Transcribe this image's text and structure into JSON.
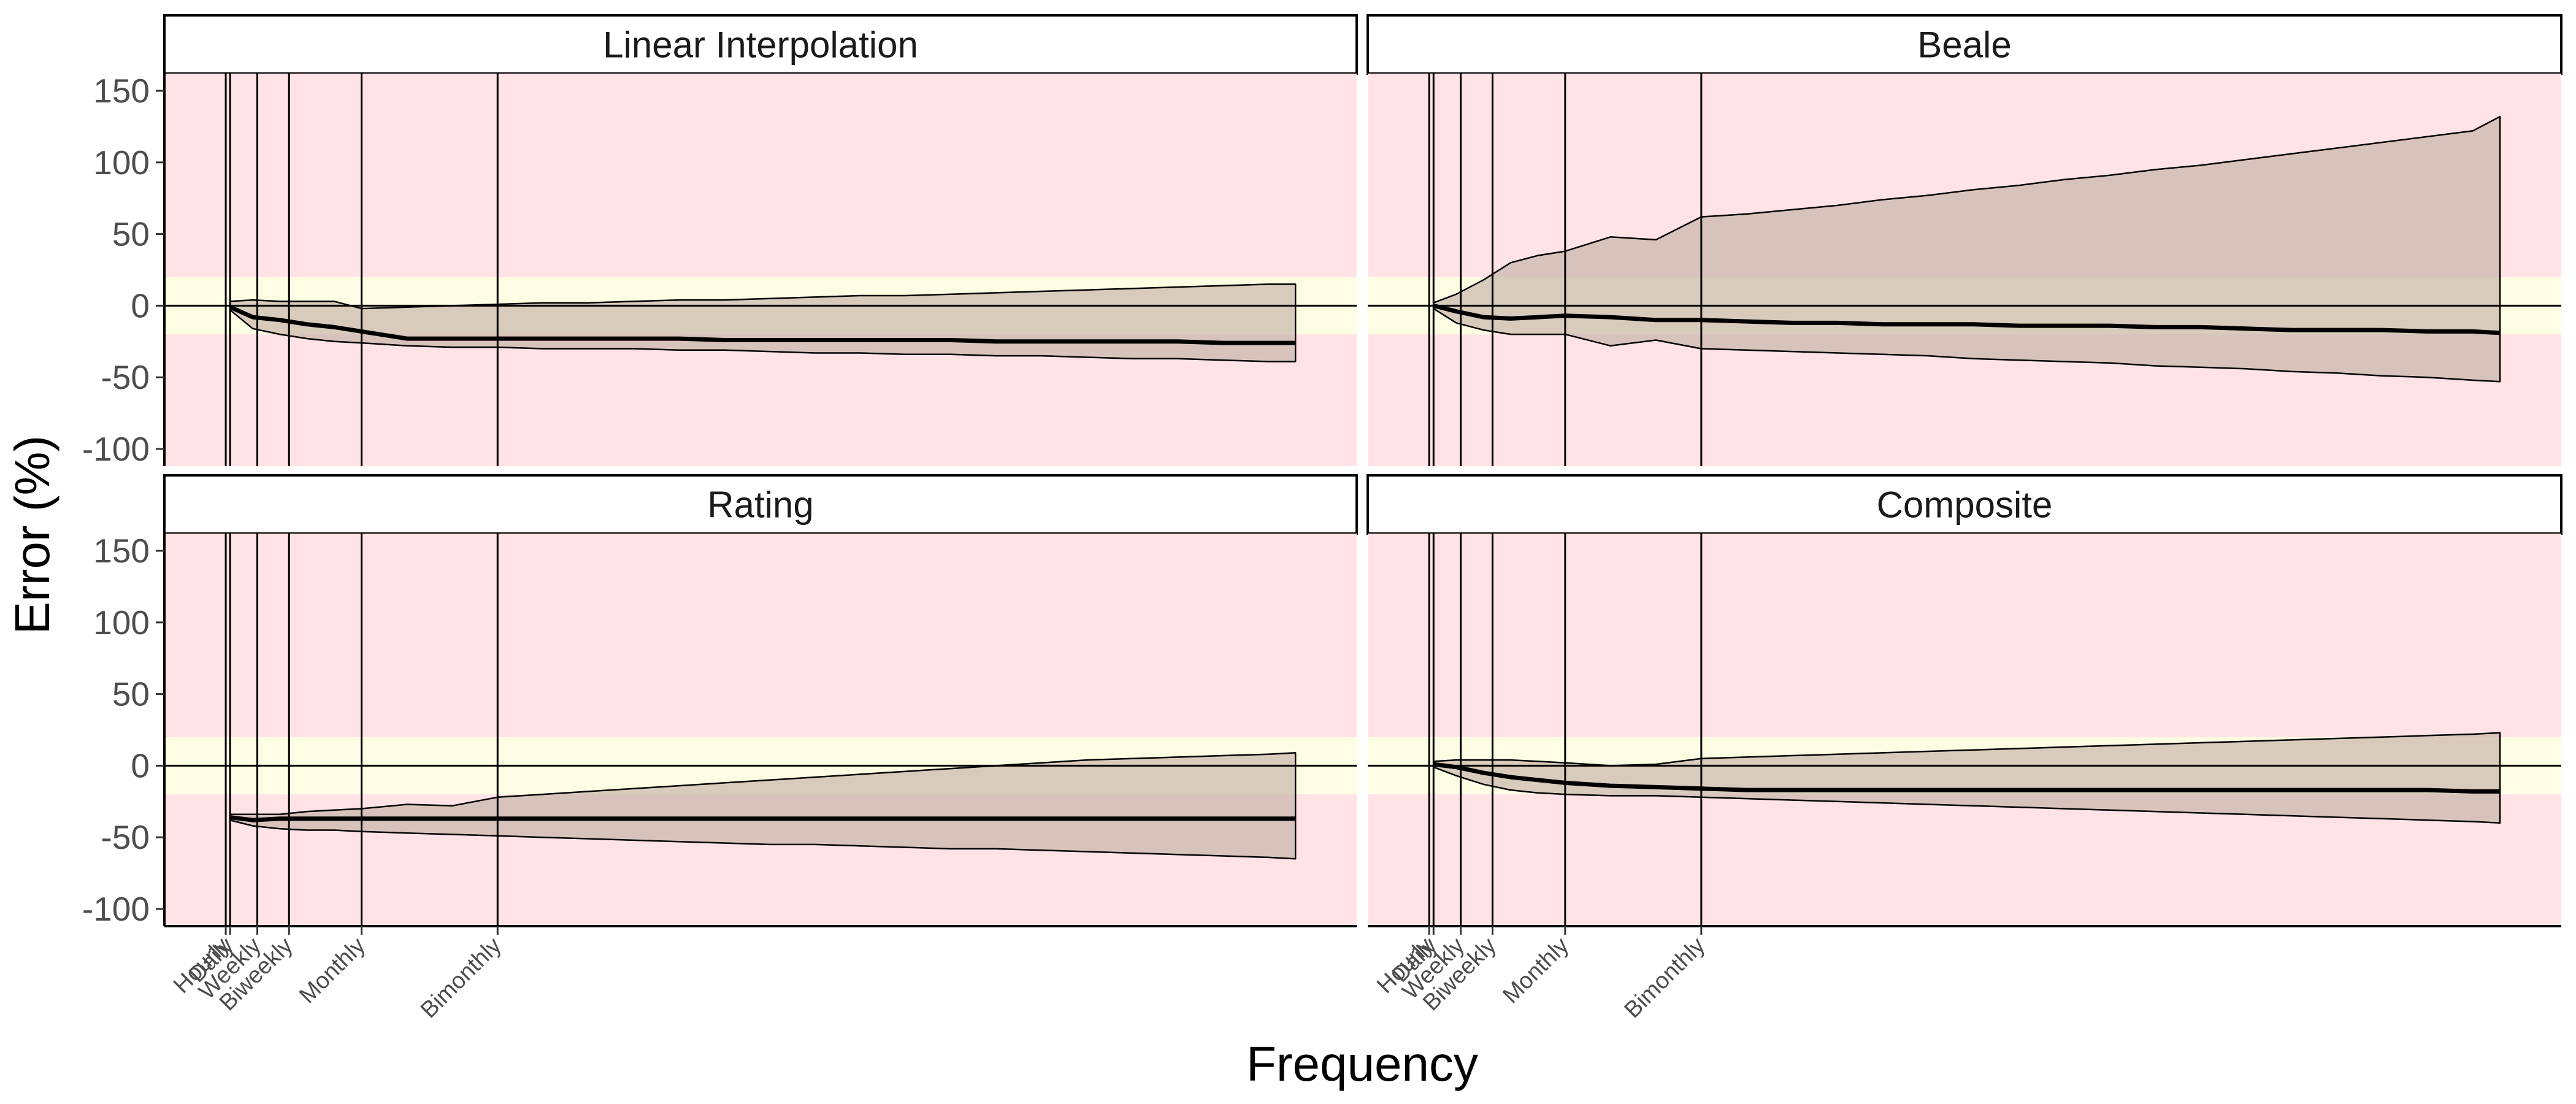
{
  "chart_data": {
    "type": "area",
    "xlabel": "Frequency",
    "ylabel": "Error (%)",
    "ylim": [
      -112,
      162
    ],
    "yticks": [
      -100,
      -50,
      0,
      50,
      100,
      150
    ],
    "xlim": [
      -13.5,
      249.5
    ],
    "x_breaks": [
      {
        "label": "Hourly",
        "x": 0.04
      },
      {
        "label": "Daily",
        "x": 1
      },
      {
        "label": "Weekly",
        "x": 7
      },
      {
        "label": "Biweekly",
        "x": 14
      },
      {
        "label": "Monthly",
        "x": 30
      },
      {
        "label": "Bimonthly",
        "x": 60
      }
    ],
    "bands": {
      "outer_color": "#ffe3e6",
      "inner_range": [
        -20,
        20
      ],
      "inner_color": "#fdfde3"
    },
    "ribbon_color": "#c9b7ac",
    "x": [
      1,
      6,
      12,
      18,
      24,
      30,
      40,
      50,
      60,
      70,
      80,
      90,
      100,
      110,
      120,
      130,
      140,
      150,
      160,
      170,
      180,
      190,
      200,
      210,
      220,
      230,
      236
    ],
    "facets": [
      {
        "title": "Linear Interpolation",
        "median": [
          -1,
          -8,
          -10,
          -13,
          -15,
          -18,
          -23,
          -23,
          -23,
          -23,
          -23,
          -23,
          -23,
          -24,
          -24,
          -24,
          -24,
          -24,
          -24,
          -25,
          -25,
          -25,
          -25,
          -25,
          -26,
          -26,
          -26
        ],
        "lower": [
          -3,
          -16,
          -20,
          -23,
          -25,
          -26,
          -28,
          -29,
          -29,
          -30,
          -30,
          -30,
          -31,
          -31,
          -32,
          -33,
          -33,
          -34,
          -34,
          -35,
          -35,
          -36,
          -37,
          -37,
          -38,
          -39,
          -39
        ],
        "upper": [
          3,
          4,
          3,
          3,
          3,
          -2,
          -1,
          0,
          1,
          2,
          2,
          3,
          4,
          4,
          5,
          6,
          7,
          7,
          8,
          9,
          10,
          11,
          12,
          13,
          14,
          15,
          15
        ]
      },
      {
        "title": "Beale",
        "median": [
          0,
          -4,
          -8,
          -9,
          -8,
          -7,
          -8,
          -10,
          -10,
          -11,
          -12,
          -12,
          -13,
          -13,
          -13,
          -14,
          -14,
          -14,
          -15,
          -15,
          -16,
          -17,
          -17,
          -17,
          -18,
          -18,
          -19
        ],
        "lower": [
          -2,
          -12,
          -17,
          -20,
          -20,
          -20,
          -28,
          -24,
          -30,
          -31,
          -32,
          -33,
          -34,
          -35,
          -37,
          -38,
          -39,
          -40,
          -42,
          -43,
          -44,
          -46,
          -47,
          -49,
          -50,
          -52,
          -53
        ],
        "upper": [
          2,
          8,
          18,
          30,
          35,
          38,
          48,
          46,
          62,
          64,
          67,
          70,
          74,
          77,
          81,
          84,
          88,
          91,
          95,
          98,
          102,
          106,
          110,
          114,
          118,
          122,
          132
        ]
      },
      {
        "title": "Rating",
        "median": [
          -36,
          -38,
          -37,
          -37,
          -37,
          -37,
          -37,
          -37,
          -37,
          -37,
          -37,
          -37,
          -37,
          -37,
          -37,
          -37,
          -37,
          -37,
          -37,
          -37,
          -37,
          -37,
          -37,
          -37,
          -37,
          -37,
          -37
        ],
        "lower": [
          -38,
          -42,
          -44,
          -45,
          -45,
          -46,
          -47,
          -48,
          -49,
          -50,
          -51,
          -52,
          -53,
          -54,
          -55,
          -55,
          -56,
          -57,
          -58,
          -58,
          -59,
          -60,
          -61,
          -62,
          -63,
          -64,
          -65
        ],
        "upper": [
          -34,
          -34,
          -34,
          -32,
          -31,
          -30,
          -27,
          -28,
          -22,
          -20,
          -18,
          -16,
          -14,
          -12,
          -10,
          -8,
          -6,
          -4,
          -2,
          0,
          2,
          4,
          5,
          6,
          7,
          8,
          9
        ]
      },
      {
        "title": "Composite",
        "median": [
          1,
          -1,
          -5,
          -8,
          -10,
          -12,
          -14,
          -15,
          -16,
          -17,
          -17,
          -17,
          -17,
          -17,
          -17,
          -17,
          -17,
          -17,
          -17,
          -17,
          -17,
          -17,
          -17,
          -17,
          -17,
          -18,
          -18
        ],
        "lower": [
          -1,
          -7,
          -13,
          -17,
          -19,
          -20,
          -21,
          -21,
          -22,
          -23,
          -24,
          -25,
          -26,
          -27,
          -28,
          -29,
          -30,
          -31,
          -32,
          -33,
          -34,
          -35,
          -36,
          -37,
          -38,
          -39,
          -40
        ],
        "upper": [
          3,
          4,
          4,
          4,
          3,
          2,
          0,
          1,
          5,
          6,
          7,
          8,
          9,
          10,
          11,
          12,
          13,
          14,
          15,
          16,
          17,
          18,
          19,
          20,
          21,
          22,
          23
        ]
      }
    ]
  }
}
